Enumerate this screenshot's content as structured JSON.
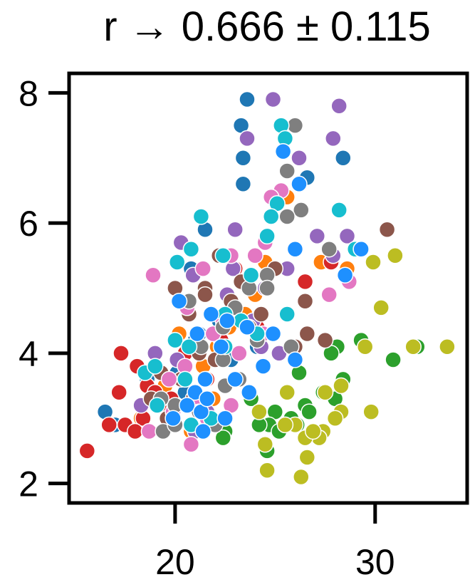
{
  "chart_data": {
    "type": "scatter",
    "title": "r → 0.666 ± 0.115",
    "xlabel": "",
    "ylabel": "",
    "xlim": [
      14.7,
      34.6
    ],
    "ylim": [
      1.7,
      8.3
    ],
    "x_ticks": [
      20,
      30
    ],
    "y_ticks": [
      2,
      4,
      6,
      8
    ],
    "x_tick_labels": [
      "20",
      "30"
    ],
    "y_tick_labels": [
      "2",
      "4",
      "6",
      "8"
    ],
    "grid": false,
    "legend": "none",
    "series": [
      {
        "color": "#1f77b4",
        "points": [
          [
            23.6,
            7.9
          ],
          [
            23.3,
            7.5
          ],
          [
            28.4,
            7.0
          ],
          [
            23.4,
            7.0
          ],
          [
            26.6,
            6.7
          ],
          [
            23.4,
            6.6
          ],
          [
            21.5,
            5.9
          ],
          [
            20.3,
            5.7
          ],
          [
            29.0,
            5.6
          ],
          [
            20.8,
            5.3
          ],
          [
            17.2,
            3.4
          ],
          [
            16.5,
            3.1
          ],
          [
            17.0,
            2.9
          ],
          [
            20.1,
            3.7
          ],
          [
            21.2,
            4.3
          ],
          [
            18.6,
            3.6
          ],
          [
            22.8,
            3.9
          ],
          [
            19.6,
            3.1
          ],
          [
            21.0,
            4.2
          ],
          [
            20.5,
            3.4
          ],
          [
            22.2,
            4.5
          ],
          [
            24.1,
            4.1
          ]
        ]
      },
      {
        "color": "#ff7f0e",
        "points": [
          [
            24.5,
            5.4
          ],
          [
            25.6,
            6.4
          ],
          [
            27.3,
            5.4
          ],
          [
            28.6,
            5.3
          ],
          [
            22.7,
            4.4
          ],
          [
            24.0,
            4.9
          ],
          [
            20.2,
            4.3
          ],
          [
            19.5,
            3.5
          ],
          [
            21.4,
            3.8
          ],
          [
            20.8,
            2.8
          ],
          [
            22.1,
            4.1
          ],
          [
            23.5,
            4.6
          ],
          [
            18.3,
            3.0
          ],
          [
            21.9,
            3.3
          ]
        ]
      },
      {
        "color": "#2ca02c",
        "points": [
          [
            29.3,
            4.2
          ],
          [
            28.1,
            4.1
          ],
          [
            30.9,
            3.9
          ],
          [
            27.8,
            4.0
          ],
          [
            28.4,
            3.6
          ],
          [
            32.1,
            4.1
          ],
          [
            26.2,
            3.7
          ],
          [
            25.0,
            3.1
          ],
          [
            26.5,
            3.2
          ],
          [
            24.7,
            2.9
          ],
          [
            25.2,
            2.8
          ],
          [
            22.5,
            2.8
          ],
          [
            22.4,
            2.7
          ],
          [
            24.6,
            2.5
          ],
          [
            26.1,
            2.9
          ],
          [
            23.8,
            3.3
          ],
          [
            27.4,
            3.4
          ],
          [
            25.8,
            3.0
          ],
          [
            24.2,
            2.9
          ],
          [
            26.7,
            3.1
          ],
          [
            28.0,
            3.3
          ]
        ]
      },
      {
        "color": "#d62728",
        "points": [
          [
            15.6,
            2.5
          ],
          [
            17.3,
            4.0
          ],
          [
            18.1,
            3.8
          ],
          [
            17.2,
            3.4
          ],
          [
            18.6,
            3.5
          ],
          [
            19.0,
            3.4
          ],
          [
            17.5,
            2.9
          ],
          [
            16.7,
            2.9
          ],
          [
            18.4,
            3.0
          ],
          [
            19.2,
            3.2
          ],
          [
            18.0,
            2.8
          ],
          [
            27.8,
            5.4
          ],
          [
            26.5,
            5.1
          ],
          [
            24.1,
            4.4
          ],
          [
            21.6,
            3.6
          ],
          [
            20.5,
            4.0
          ],
          [
            22.3,
            4.2
          ],
          [
            19.8,
            3.3
          ],
          [
            20.6,
            4.8
          ],
          [
            23.0,
            5.3
          ]
        ]
      },
      {
        "color": "#9467bd",
        "points": [
          [
            24.9,
            7.9
          ],
          [
            28.2,
            7.8
          ],
          [
            27.9,
            7.3
          ],
          [
            23.6,
            7.3
          ],
          [
            26.2,
            7.0
          ],
          [
            23.0,
            5.9
          ],
          [
            20.3,
            5.7
          ],
          [
            27.9,
            5.5
          ],
          [
            18.9,
            5.2
          ],
          [
            20.9,
            5.2
          ],
          [
            22.9,
            5.3
          ],
          [
            25.6,
            5.3
          ],
          [
            24.5,
            5.0
          ],
          [
            28.6,
            5.8
          ],
          [
            27.1,
            5.8
          ],
          [
            18.3,
            3.2
          ],
          [
            24.3,
            4.1
          ],
          [
            19.0,
            4.0
          ],
          [
            21.6,
            3.1
          ],
          [
            22.6,
            4.9
          ],
          [
            20.1,
            3.9
          ],
          [
            23.9,
            4.5
          ],
          [
            25.2,
            4.0
          ],
          [
            21.0,
            2.8
          ]
        ]
      },
      {
        "color": "#8c564b",
        "points": [
          [
            30.6,
            5.9
          ],
          [
            26.5,
            4.8
          ],
          [
            27.5,
            4.2
          ],
          [
            26.6,
            4.3
          ],
          [
            22.2,
            5.5
          ],
          [
            21.5,
            5.0
          ],
          [
            21.5,
            4.9
          ],
          [
            20.0,
            5.0
          ],
          [
            25.0,
            5.3
          ],
          [
            20.7,
            4.6
          ],
          [
            21.2,
            4.0
          ],
          [
            19.3,
            3.7
          ],
          [
            20.3,
            3.6
          ],
          [
            23.7,
            4.4
          ],
          [
            22.8,
            4.8
          ],
          [
            20.9,
            3.3
          ],
          [
            18.8,
            3.3
          ],
          [
            24.3,
            4.6
          ],
          [
            22.0,
            3.9
          ],
          [
            19.6,
            3.0
          ],
          [
            26.0,
            4.1
          ],
          [
            23.3,
            5.1
          ]
        ]
      },
      {
        "color": "#e377c2",
        "points": [
          [
            25.3,
            6.5
          ],
          [
            24.8,
            6.4
          ],
          [
            24.5,
            5.7
          ],
          [
            22.8,
            5.5
          ],
          [
            21.4,
            5.3
          ],
          [
            18.9,
            5.2
          ],
          [
            28.7,
            5.1
          ],
          [
            27.7,
            4.9
          ],
          [
            20.6,
            4.7
          ],
          [
            21.9,
            4.3
          ],
          [
            24.4,
            4.3
          ],
          [
            19.7,
            3.6
          ],
          [
            21.1,
            3.3
          ],
          [
            19.9,
            3.1
          ],
          [
            18.7,
            2.8
          ],
          [
            20.8,
            2.6
          ],
          [
            22.4,
            4.5
          ],
          [
            23.2,
            4.0
          ],
          [
            20.5,
            3.8
          ],
          [
            22.8,
            3.2
          ],
          [
            24.0,
            5.5
          ],
          [
            21.6,
            3.0
          ]
        ]
      },
      {
        "color": "#7f7f7f",
        "points": [
          [
            26.0,
            7.5
          ],
          [
            25.6,
            6.8
          ],
          [
            26.3,
            6.2
          ],
          [
            25.6,
            6.1
          ],
          [
            27.7,
            5.6
          ],
          [
            24.6,
            5.2
          ],
          [
            24.6,
            5.0
          ],
          [
            23.7,
            5.0
          ],
          [
            22.4,
            4.4
          ],
          [
            20.7,
            4.8
          ],
          [
            21.3,
            4.1
          ],
          [
            22.4,
            3.9
          ],
          [
            23.2,
            3.6
          ],
          [
            20.0,
            3.2
          ],
          [
            19.3,
            3.3
          ],
          [
            21.2,
            3.1
          ],
          [
            22.0,
            2.9
          ],
          [
            19.4,
            2.8
          ],
          [
            20.0,
            2.9
          ],
          [
            22.5,
            3.5
          ],
          [
            25.8,
            4.1
          ],
          [
            24.1,
            4.2
          ],
          [
            23.0,
            4.7
          ]
        ]
      },
      {
        "color": "#bcbd22",
        "points": [
          [
            33.6,
            4.1
          ],
          [
            31.9,
            4.1
          ],
          [
            29.5,
            4.1
          ],
          [
            30.3,
            4.7
          ],
          [
            31.0,
            5.5
          ],
          [
            29.9,
            5.4
          ],
          [
            29.8,
            3.1
          ],
          [
            28.3,
            3.5
          ],
          [
            28.3,
            3.1
          ],
          [
            27.5,
            3.4
          ],
          [
            28.0,
            3.0
          ],
          [
            27.4,
            2.8
          ],
          [
            27.2,
            2.7
          ],
          [
            26.5,
            2.7
          ],
          [
            26.6,
            2.4
          ],
          [
            26.0,
            2.9
          ],
          [
            25.6,
            3.4
          ],
          [
            24.5,
            2.6
          ],
          [
            24.6,
            2.2
          ],
          [
            26.3,
            2.1
          ],
          [
            25.5,
            2.9
          ],
          [
            24.2,
            3.1
          ],
          [
            26.9,
            2.8
          ]
        ]
      },
      {
        "color": "#17becf",
        "points": [
          [
            25.3,
            7.5
          ],
          [
            25.5,
            7.3
          ],
          [
            25.1,
            6.3
          ],
          [
            24.8,
            6.1
          ],
          [
            28.2,
            6.2
          ],
          [
            24.6,
            5.8
          ],
          [
            29.0,
            5.6
          ],
          [
            22.4,
            5.5
          ],
          [
            23.8,
            5.2
          ],
          [
            20.1,
            5.4
          ],
          [
            20.8,
            5.6
          ],
          [
            21.3,
            6.1
          ],
          [
            25.6,
            4.6
          ],
          [
            22.5,
            4.6
          ],
          [
            23.3,
            4.5
          ],
          [
            20.0,
            4.2
          ],
          [
            20.7,
            4.1
          ],
          [
            22.5,
            4.1
          ],
          [
            24.1,
            4.3
          ],
          [
            18.5,
            3.7
          ],
          [
            19.0,
            3.8
          ],
          [
            20.5,
            3.6
          ],
          [
            19.1,
            3.2
          ],
          [
            21.8,
            3.0
          ],
          [
            20.8,
            2.9
          ]
        ]
      },
      {
        "color": "#1e90ff",
        "points": [
          [
            25.4,
            7.1
          ],
          [
            26.2,
            6.6
          ],
          [
            26.0,
            5.6
          ],
          [
            29.3,
            5.6
          ],
          [
            28.5,
            5.2
          ],
          [
            21.8,
            4.6
          ],
          [
            22.6,
            4.5
          ],
          [
            21.1,
            4.3
          ],
          [
            23.6,
            4.4
          ],
          [
            24.9,
            4.3
          ],
          [
            22.3,
            4.1
          ],
          [
            21.5,
            3.6
          ],
          [
            23.0,
            3.6
          ],
          [
            23.7,
            3.4
          ],
          [
            24.4,
            3.8
          ],
          [
            21.0,
            3.4
          ],
          [
            19.9,
            3.0
          ],
          [
            20.6,
            3.2
          ],
          [
            21.3,
            3.1
          ],
          [
            21.6,
            3.3
          ],
          [
            21.4,
            2.8
          ],
          [
            22.5,
            3.0
          ],
          [
            26.0,
            3.9
          ],
          [
            20.2,
            4.8
          ]
        ]
      }
    ]
  }
}
